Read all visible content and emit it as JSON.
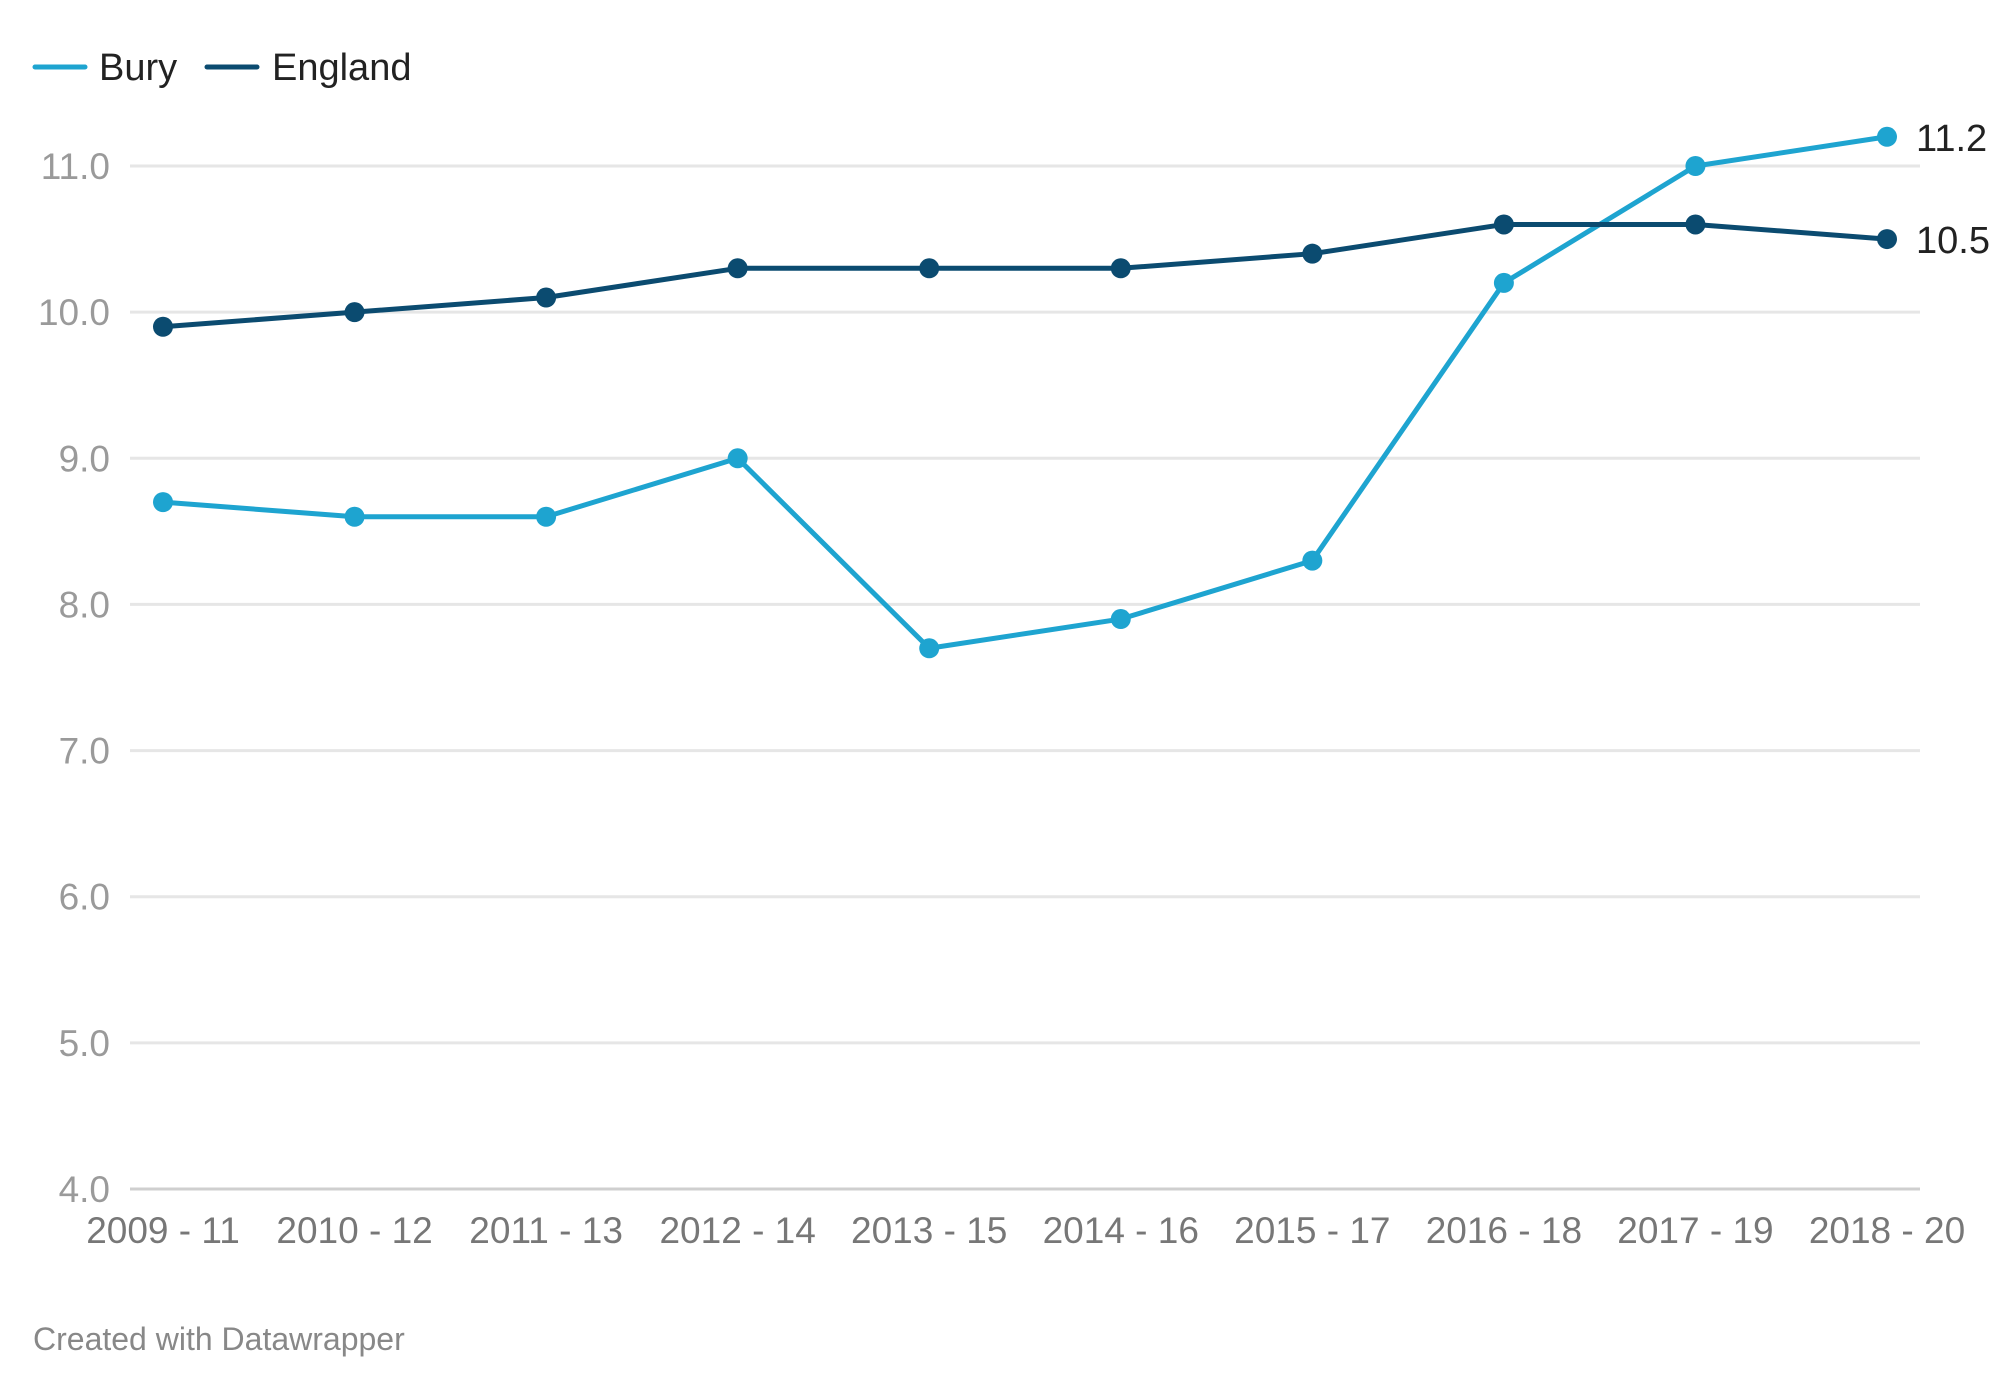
{
  "chart_data": {
    "type": "line",
    "title": "",
    "xlabel": "",
    "ylabel": "",
    "categories": [
      "2009 - 11",
      "2010 - 12",
      "2011 - 13",
      "2012 - 14",
      "2013 - 15",
      "2014 - 16",
      "2015 - 17",
      "2016 - 18",
      "2017 - 19",
      "2018 - 20"
    ],
    "ylim": [
      4.0,
      11.0
    ],
    "yticks": [
      "4.0",
      "5.0",
      "6.0",
      "7.0",
      "8.0",
      "9.0",
      "10.0",
      "11.0"
    ],
    "grid": "horizontal",
    "legend_position": "top-left",
    "series": [
      {
        "name": "Bury",
        "color": "#1ea4d0",
        "values": [
          8.7,
          8.6,
          8.6,
          9.0,
          7.7,
          7.9,
          8.3,
          10.2,
          11.0,
          11.2
        ],
        "end_label": "11.2"
      },
      {
        "name": "England",
        "color": "#0b4b70",
        "values": [
          9.9,
          10.0,
          10.1,
          10.3,
          10.3,
          10.3,
          10.4,
          10.6,
          10.6,
          10.5
        ],
        "end_label": "10.5"
      }
    ]
  },
  "footer": {
    "credit": "Created with Datawrapper"
  }
}
